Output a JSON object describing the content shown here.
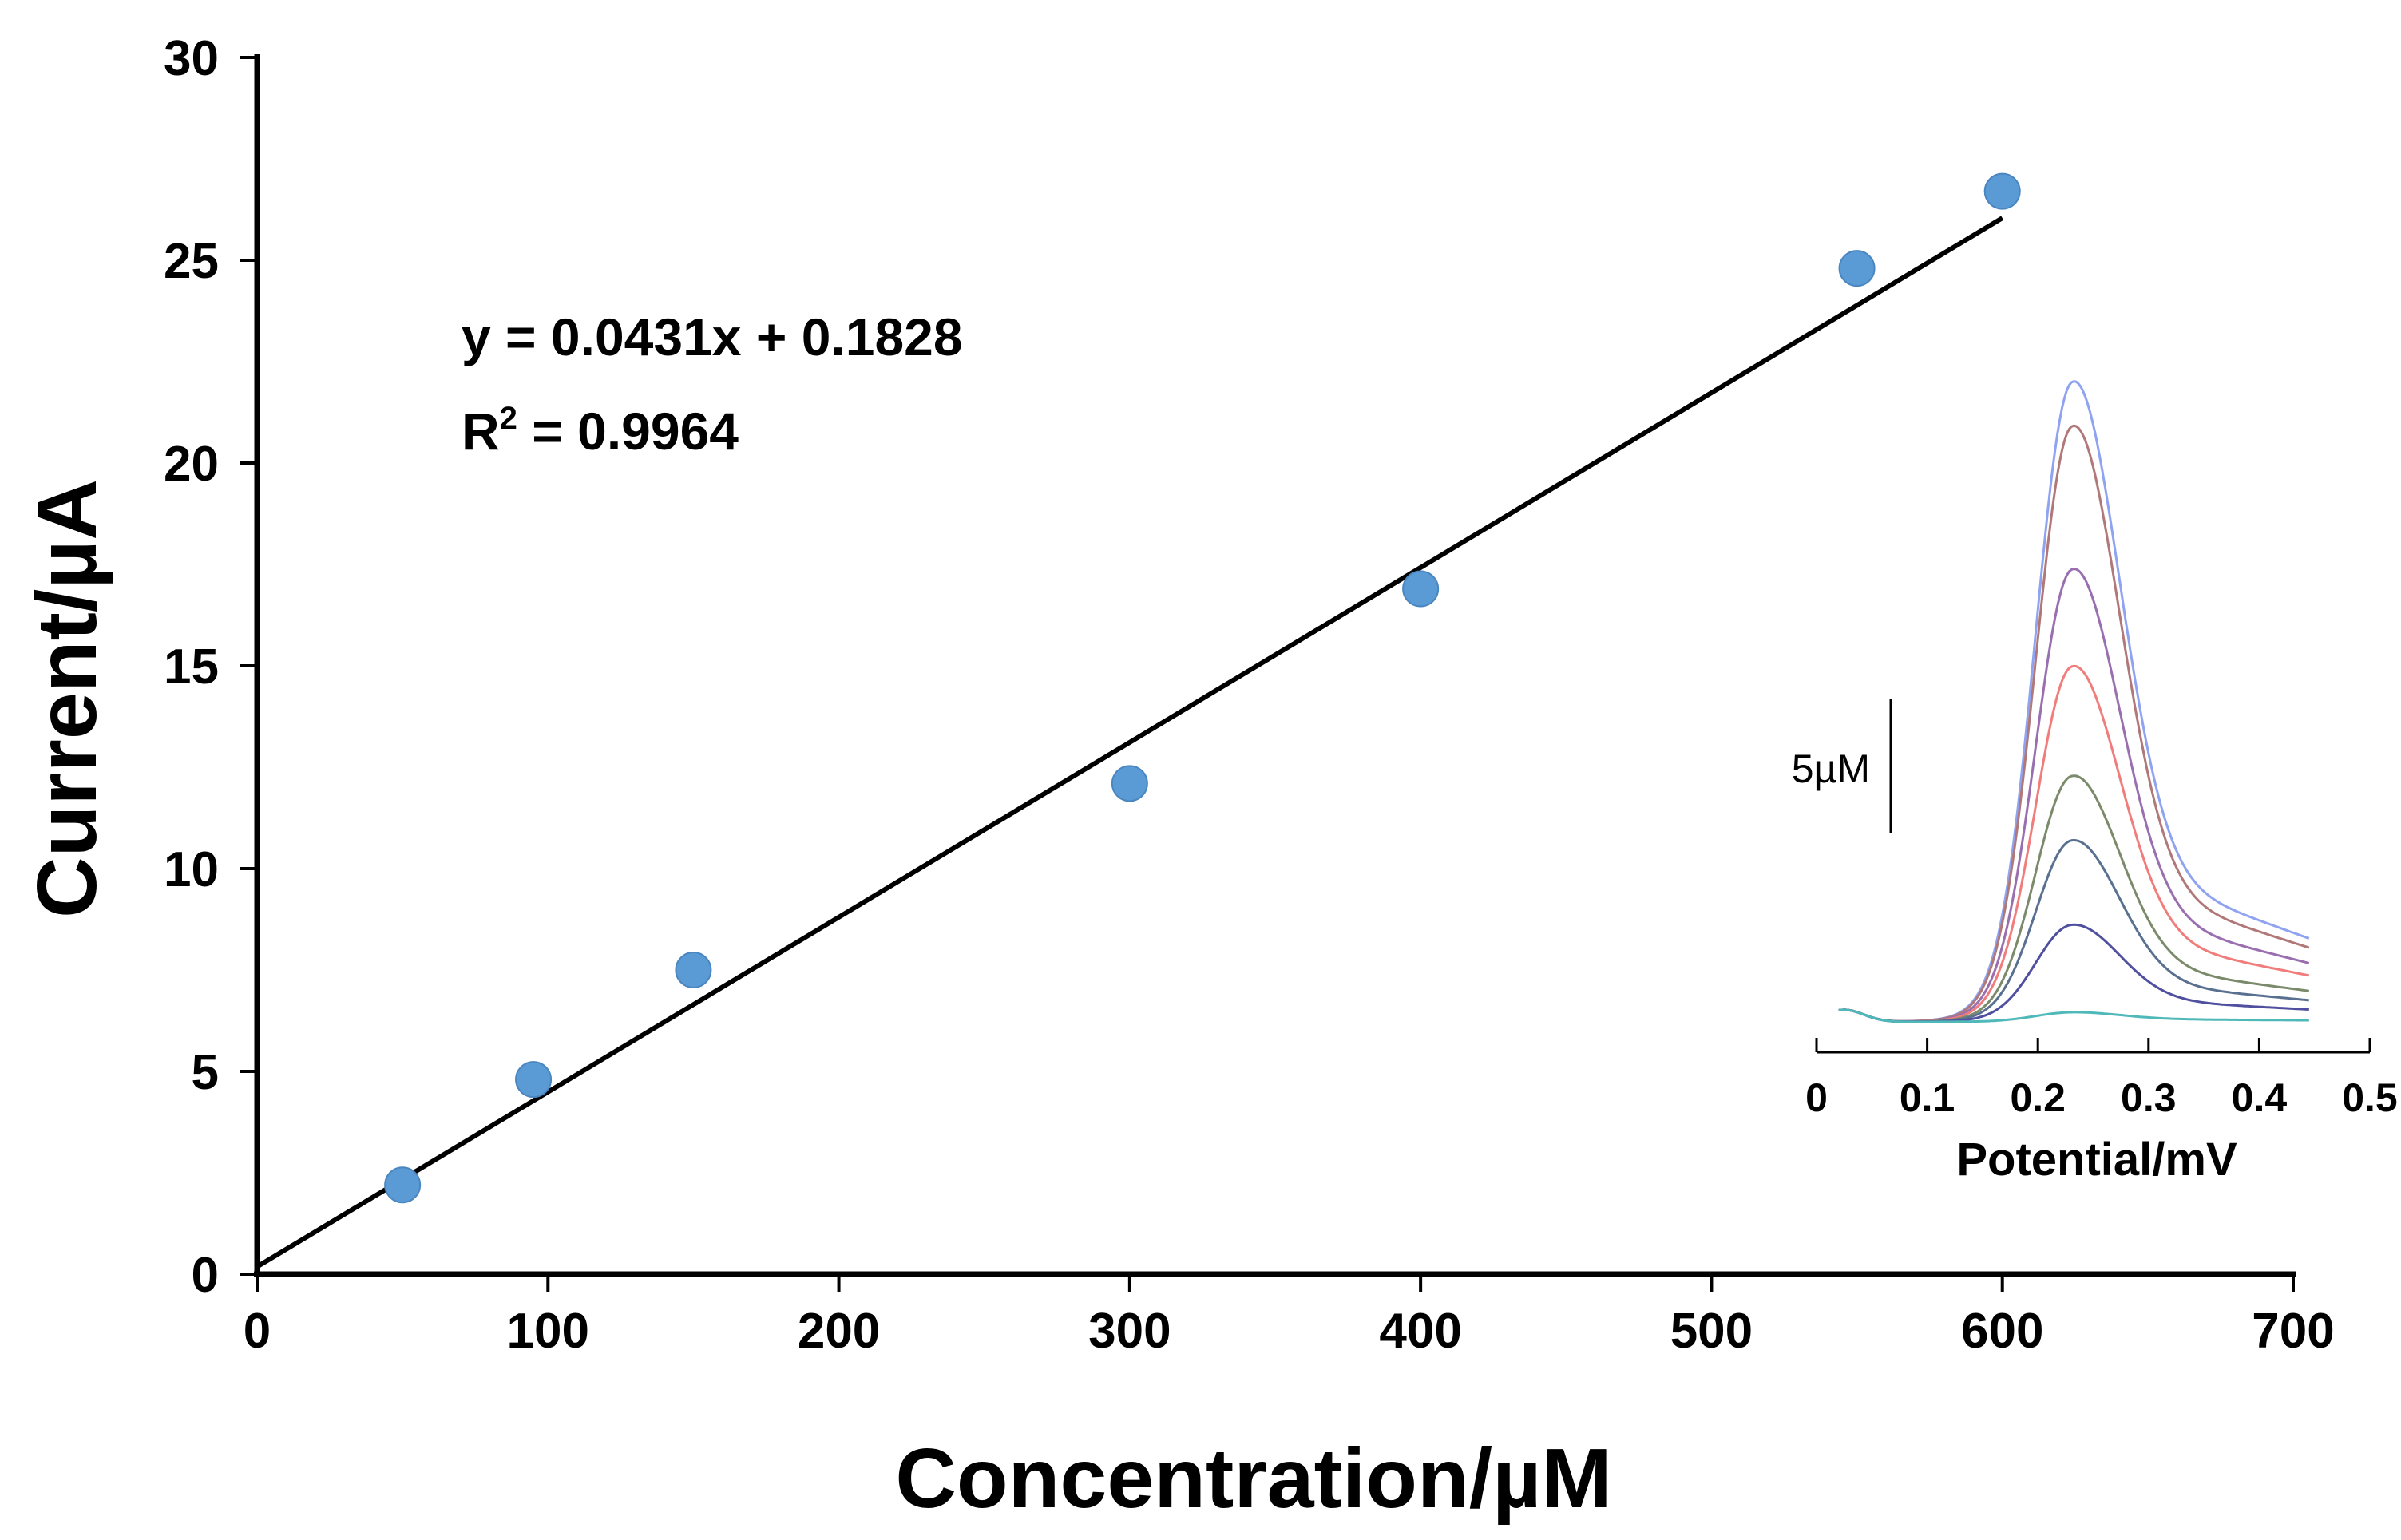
{
  "chart_data": [
    {
      "type": "scatter",
      "title": "",
      "xlabel": "Concentration/µM",
      "ylabel": "Current/µA",
      "xlim": [
        0,
        700
      ],
      "ylim": [
        0,
        30
      ],
      "xticks": [
        "0",
        "100",
        "200",
        "300",
        "400",
        "500",
        "600",
        "700"
      ],
      "yticks": [
        "0",
        "5",
        "10",
        "15",
        "20",
        "25",
        "30"
      ],
      "points": [
        {
          "x": 50,
          "y": 2.2
        },
        {
          "x": 95,
          "y": 4.8
        },
        {
          "x": 150,
          "y": 7.5
        },
        {
          "x": 300,
          "y": 12.1
        },
        {
          "x": 400,
          "y": 16.9
        },
        {
          "x": 550,
          "y": 24.8
        },
        {
          "x": 600,
          "y": 26.7
        }
      ],
      "point_color": "#5b9bd5",
      "trendline": {
        "slope": 0.0431,
        "intercept": 0.1828,
        "x_range": [
          0,
          600
        ],
        "color": "#000000"
      },
      "equation_text": "y = 0.0431x + 0.1828",
      "r2_prefix": "R",
      "r2_sup": "2",
      "r2_value_text": " = 0.9964"
    },
    {
      "type": "line",
      "title": "",
      "xlabel": "Potential/mV",
      "xlim": [
        0,
        0.5
      ],
      "ylim": [
        0,
        1
      ],
      "xticks": [
        "0",
        "0.1",
        "0.2",
        "0.3",
        "0.4",
        "0.5"
      ],
      "scale_bar_label": "5µM",
      "peak_x": 0.23,
      "series": [
        {
          "name": "s1",
          "color": "#8fa3f0",
          "peak": 0.99,
          "tail": 0.27
        },
        {
          "name": "s2",
          "color": "#b07878",
          "peak": 0.92,
          "tail": 0.24
        },
        {
          "name": "s3",
          "color": "#9a6fb0",
          "peak": 0.7,
          "tail": 0.19
        },
        {
          "name": "s4",
          "color": "#f07c7c",
          "peak": 0.55,
          "tail": 0.15
        },
        {
          "name": "s5",
          "color": "#7a8a6a",
          "peak": 0.38,
          "tail": 0.1
        },
        {
          "name": "s6",
          "color": "#5a7090",
          "peak": 0.28,
          "tail": 0.07
        },
        {
          "name": "s7",
          "color": "#5050a0",
          "peak": 0.15,
          "tail": 0.04
        },
        {
          "name": "s8",
          "color": "#4fb8b8",
          "peak": 0.015,
          "tail": 0.005
        }
      ]
    }
  ]
}
